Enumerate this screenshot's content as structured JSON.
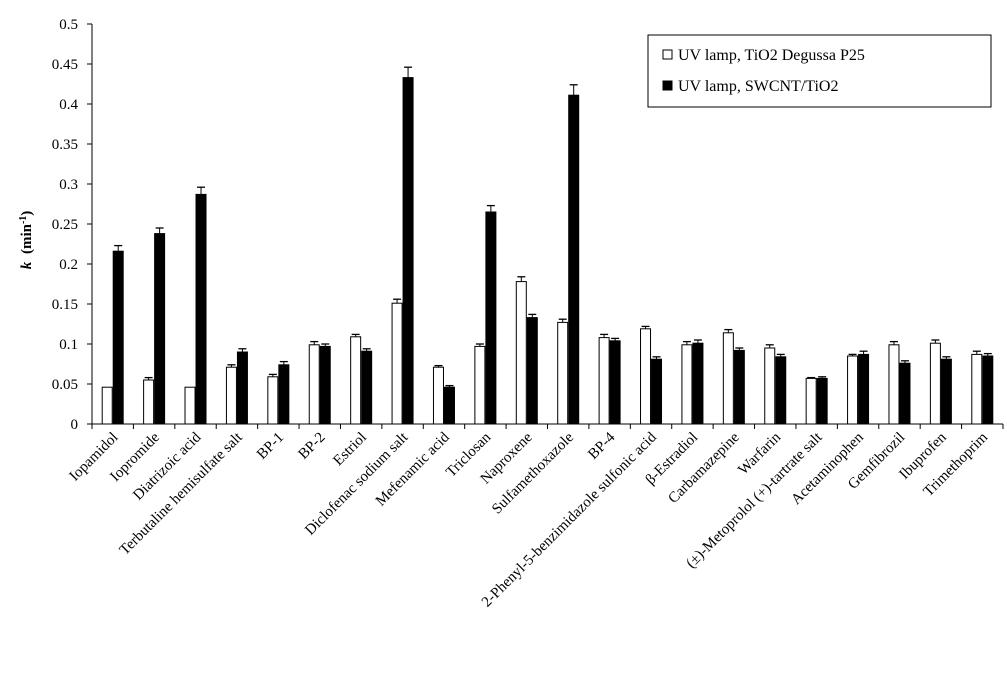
{
  "chart_data": {
    "type": "bar",
    "title": "",
    "xlabel": "",
    "ylabel": {
      "main": "k",
      "unit_prefix": "(min",
      "unit_exp": "-1",
      "unit_suffix": ")"
    },
    "ylim": [
      0,
      0.5
    ],
    "yticks": [
      "0",
      "0.05",
      "0.1",
      "0.15",
      "0.2",
      "0.25",
      "0.3",
      "0.35",
      "0.4",
      "0.45",
      "0.5"
    ],
    "ytick_values": [
      0,
      0.05,
      0.1,
      0.15,
      0.2,
      0.25,
      0.3,
      0.35,
      0.4,
      0.45,
      0.5
    ],
    "grid": false,
    "legend_position": "top-right",
    "categories": [
      "Iopamidol",
      "Iopromide",
      "Diatrizoic acid",
      "Terbutaline hemisulfate salt",
      "BP-1",
      "BP-2",
      "Estriol",
      "Diclofenac sodium salt",
      "Mefenamic acid",
      "Triclosan",
      "Naproxene",
      "Sulfamethoxazole",
      "BP-4",
      "2-Phenyl-5-benzimidazole sulfonic acid",
      "β-Estradiol",
      "Carbamazepine",
      "Warfarin",
      "(±)-Metoprolol (+)-tartrate salt",
      "Acetaminophen",
      "Gemfibrozil",
      "Ibuprofen",
      "Trimethoprim"
    ],
    "series": [
      {
        "name": "UV lamp, TiO2 Degussa P25",
        "color": "#ffffff",
        "values": [
          0.046,
          0.055,
          0.046,
          0.071,
          0.059,
          0.099,
          0.109,
          0.151,
          0.071,
          0.097,
          0.178,
          0.127,
          0.108,
          0.119,
          0.099,
          0.114,
          0.095,
          0.057,
          0.085,
          0.099,
          0.101,
          0.087
        ],
        "errors": [
          0.0,
          0.003,
          0.0,
          0.003,
          0.003,
          0.004,
          0.003,
          0.005,
          0.002,
          0.003,
          0.006,
          0.004,
          0.004,
          0.003,
          0.004,
          0.004,
          0.004,
          0.001,
          0.002,
          0.004,
          0.004,
          0.004
        ]
      },
      {
        "name": "UV lamp, SWCNT/TiO2",
        "color": "#000000",
        "values": [
          0.216,
          0.238,
          0.287,
          0.09,
          0.074,
          0.097,
          0.091,
          0.433,
          0.046,
          0.265,
          0.133,
          0.411,
          0.104,
          0.081,
          0.101,
          0.092,
          0.084,
          0.057,
          0.087,
          0.076,
          0.081,
          0.085
        ],
        "errors": [
          0.007,
          0.007,
          0.009,
          0.004,
          0.004,
          0.003,
          0.003,
          0.013,
          0.002,
          0.008,
          0.004,
          0.013,
          0.003,
          0.003,
          0.004,
          0.003,
          0.003,
          0.002,
          0.004,
          0.003,
          0.003,
          0.003
        ]
      }
    ]
  }
}
